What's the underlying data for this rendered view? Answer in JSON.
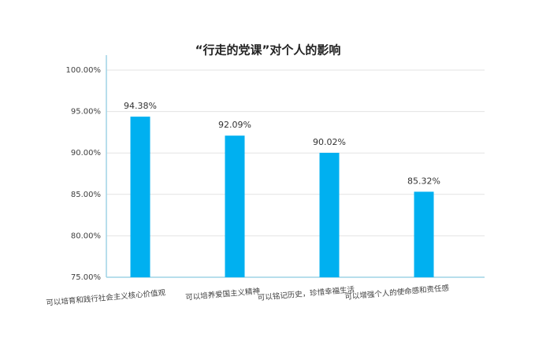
{
  "chart_data": {
    "type": "bar",
    "title": "“行走的党课”对个人的影响",
    "categories": [
      "可以培育和践行社会主义核心价值观",
      "可以培养爱国主义精神",
      "可以铭记历史，珍惜幸福生活",
      "可以增强个人的使命感和责任感"
    ],
    "values": [
      94.38,
      92.09,
      90.02,
      85.32
    ],
    "value_labels": [
      "94.38%",
      "92.09%",
      "90.02%",
      "85.32%"
    ],
    "color": "#00b0f0",
    "ylim": [
      75,
      100
    ],
    "yticks": [
      {
        "value": 75,
        "label": "75.00%"
      },
      {
        "value": 80,
        "label": "80.00%"
      },
      {
        "value": 85,
        "label": "85.00%"
      },
      {
        "value": 90,
        "label": "90.00%"
      },
      {
        "value": 95,
        "label": "95.00%"
      },
      {
        "value": 100,
        "label": "100.00%"
      }
    ],
    "grid": true
  }
}
